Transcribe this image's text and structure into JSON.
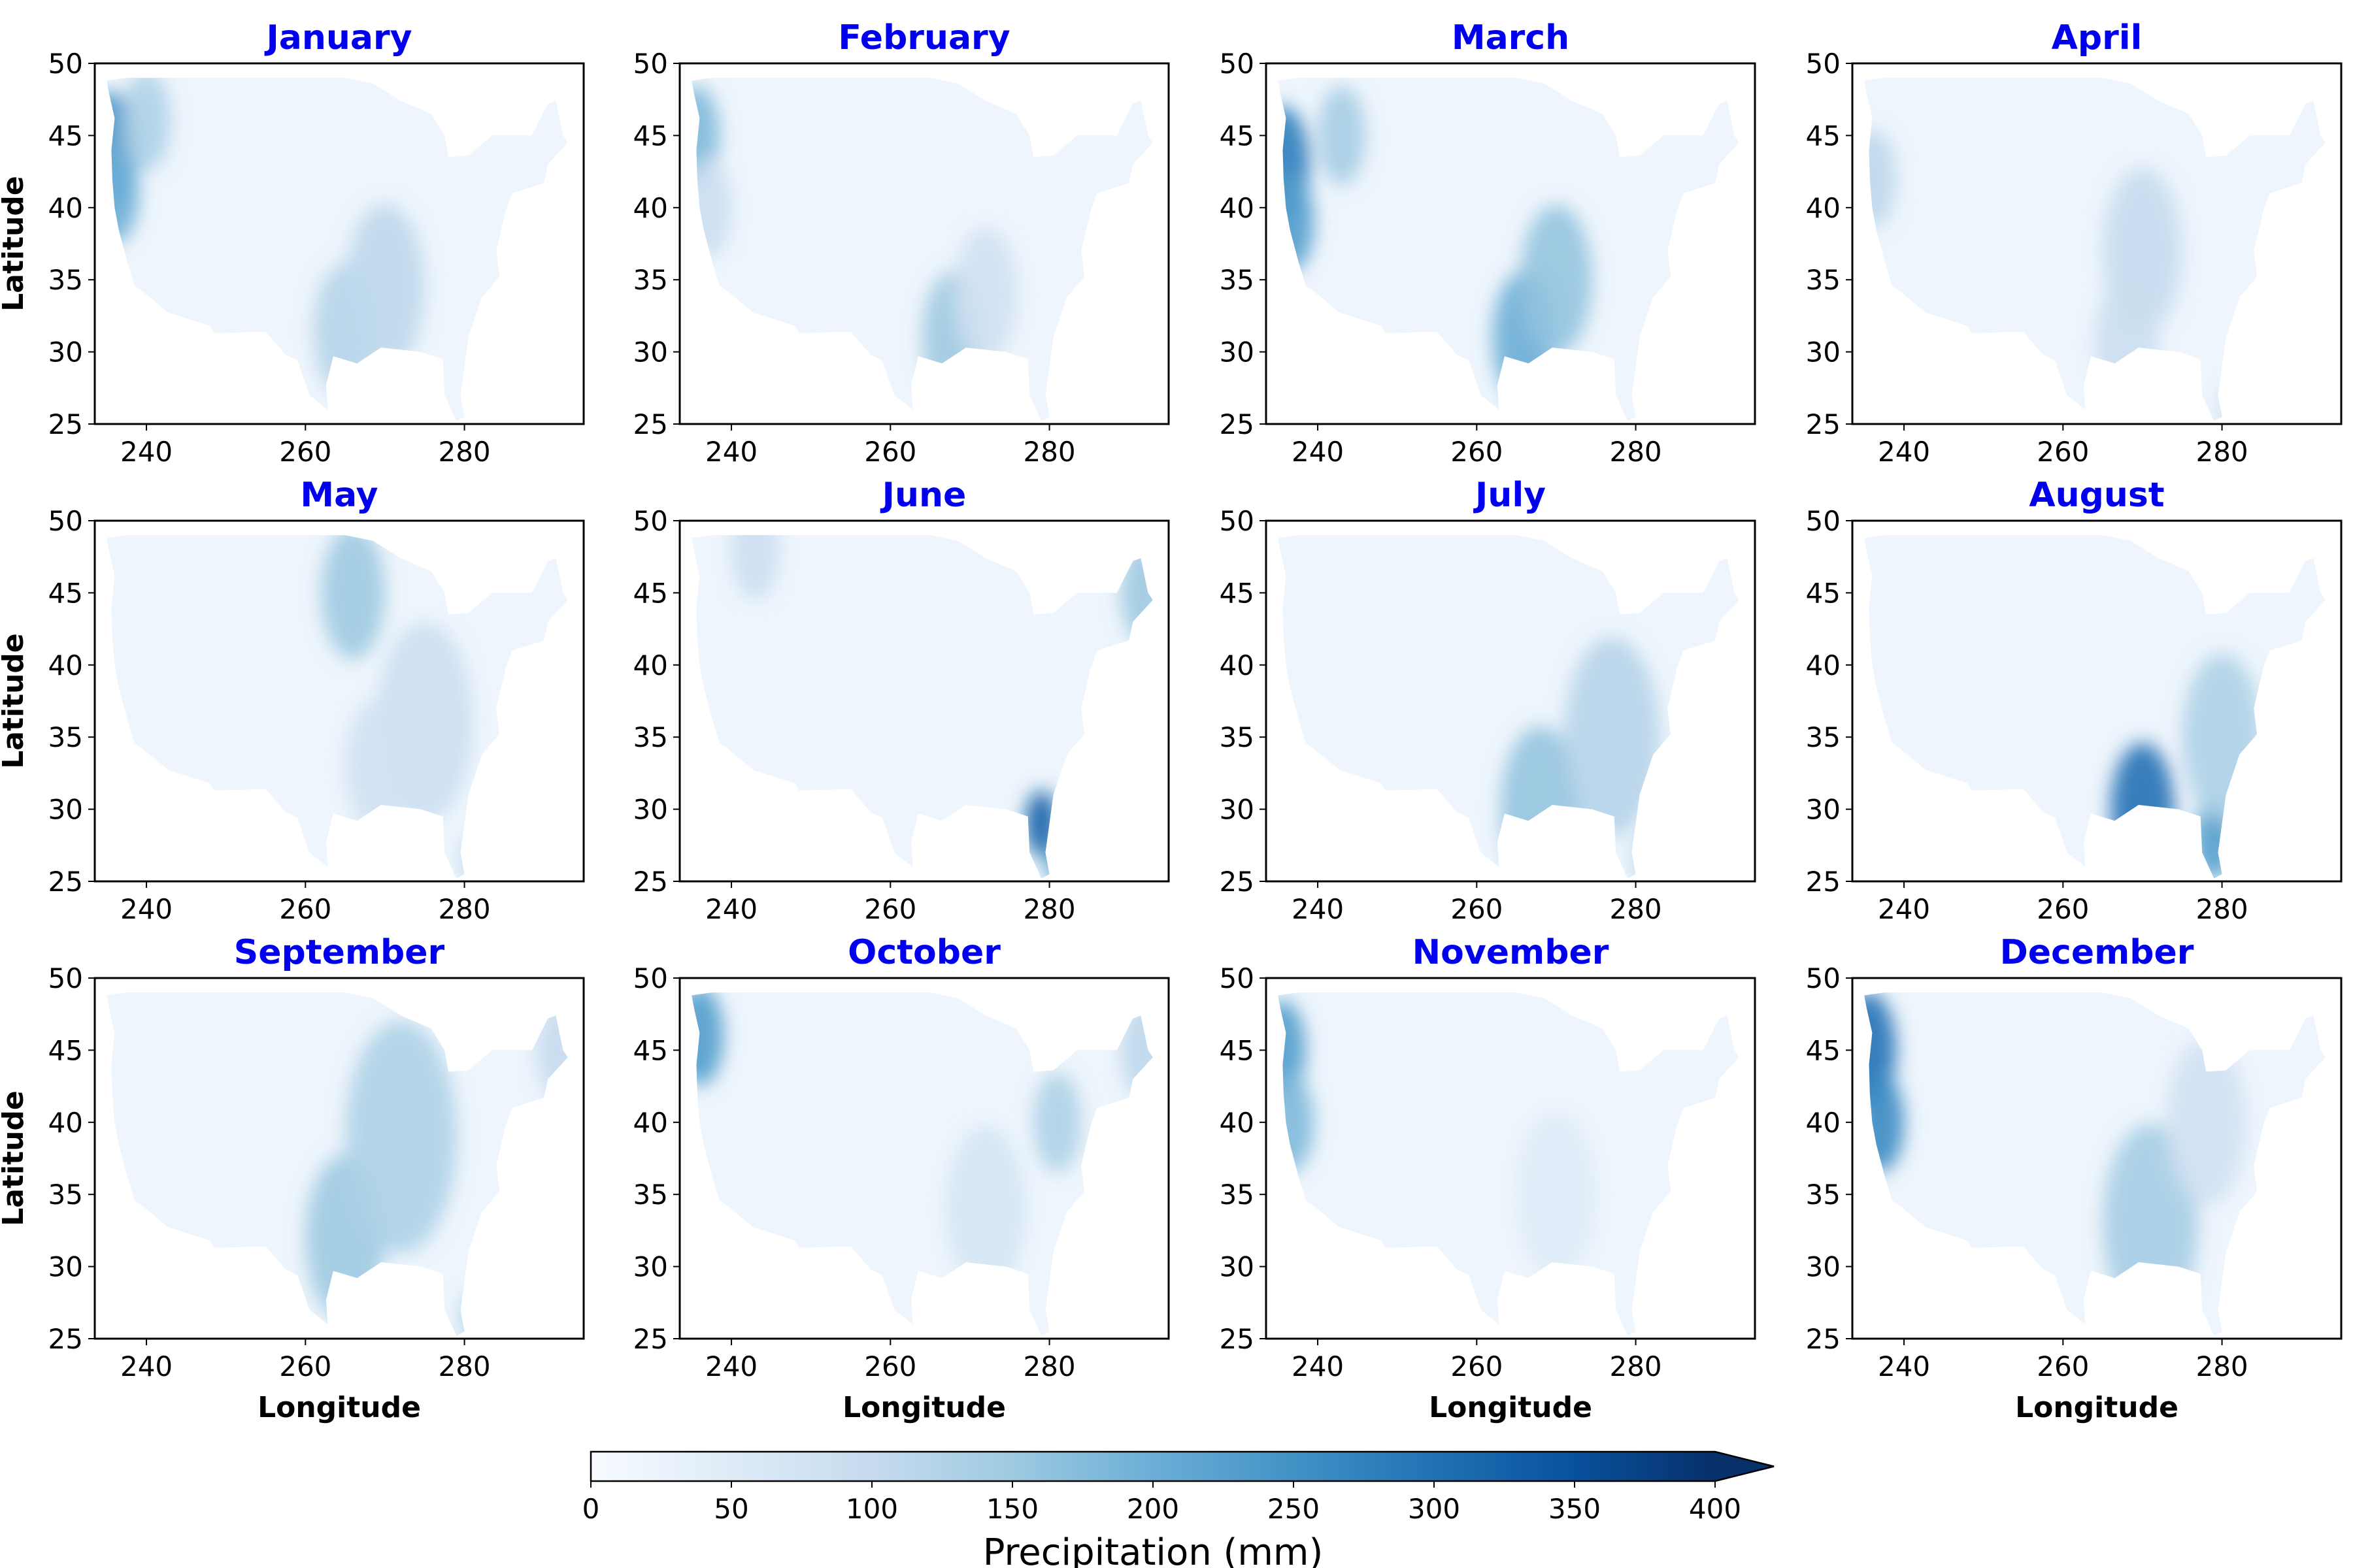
{
  "figure": {
    "colorbar": {
      "label": "Precipitation (mm)",
      "ticks": [
        "0",
        "50",
        "100",
        "150",
        "200",
        "250",
        "300",
        "350",
        "400"
      ],
      "min": 0,
      "max": 400,
      "extend": "max",
      "colormap": [
        "#f7fbff",
        "#deebf7",
        "#c6dbef",
        "#9ecae1",
        "#6baed6",
        "#4292c6",
        "#2171b5",
        "#08519c",
        "#08306b"
      ]
    }
  },
  "chart_data": {
    "type": "heatmap",
    "layout": "3x4 panel grid",
    "x_label": "Longitude",
    "y_label": "Latitude",
    "xlim": [
      233.5,
      295
    ],
    "ylim": [
      25,
      50
    ],
    "x_ticks": [
      "240",
      "260",
      "280"
    ],
    "y_ticks": [
      "25",
      "30",
      "35",
      "40",
      "45",
      "50"
    ],
    "colorbar_label": "Precipitation (mm)",
    "panels": [
      {
        "title": "January",
        "hotspots": [
          [
            235.5,
            44,
            3.5,
            250
          ],
          [
            236,
            41,
            3,
            200
          ],
          [
            240,
            46,
            3,
            130
          ],
          [
            265,
            31.5,
            4,
            120
          ],
          [
            270,
            34.5,
            5,
            110
          ]
        ]
      },
      {
        "title": "February",
        "hotspots": [
          [
            235.5,
            45,
            3,
            180
          ],
          [
            237,
            40,
            3,
            90
          ],
          [
            268,
            31,
            4,
            150
          ],
          [
            272,
            34,
            4,
            80
          ]
        ]
      },
      {
        "title": "March",
        "hotspots": [
          [
            235.5,
            43,
            3.5,
            280
          ],
          [
            236.5,
            39,
            3,
            230
          ],
          [
            243,
            45,
            3,
            140
          ],
          [
            266,
            31,
            4,
            200
          ],
          [
            270,
            35,
            4.5,
            160
          ]
        ]
      },
      {
        "title": "April",
        "hotspots": [
          [
            236,
            42,
            3,
            110
          ],
          [
            270,
            37,
            5,
            100
          ],
          [
            268,
            30.5,
            4,
            90
          ],
          [
            281,
            26,
            1.5,
            80
          ]
        ]
      },
      {
        "title": "May",
        "hotspots": [
          [
            266,
            45,
            4,
            150
          ],
          [
            275,
            36,
            6,
            90
          ],
          [
            269,
            33,
            4,
            80
          ],
          [
            281,
            26.5,
            1.5,
            110
          ]
        ]
      },
      {
        "title": "June",
        "hotspots": [
          [
            279,
            29,
            2,
            330
          ],
          [
            281,
            26.5,
            1.5,
            230
          ],
          [
            292,
            45,
            3,
            150
          ],
          [
            243,
            48,
            3,
            90
          ]
        ]
      },
      {
        "title": "July",
        "hotspots": [
          [
            268,
            30,
            5,
            160
          ],
          [
            277,
            35,
            6,
            120
          ],
          [
            281,
            26.5,
            1.5,
            110
          ]
        ]
      },
      {
        "title": "August",
        "hotspots": [
          [
            270,
            30,
            4,
            300
          ],
          [
            279,
            28,
            2.5,
            230
          ],
          [
            280,
            35,
            5,
            130
          ]
        ]
      },
      {
        "title": "September",
        "hotspots": [
          [
            265,
            32,
            5,
            150
          ],
          [
            272,
            39,
            7,
            130
          ],
          [
            281,
            26.5,
            1.5,
            130
          ],
          [
            292,
            45,
            3,
            100
          ]
        ]
      },
      {
        "title": "October",
        "hotspots": [
          [
            236,
            46,
            3,
            230
          ],
          [
            281,
            40,
            3,
            130
          ],
          [
            292,
            45,
            3,
            110
          ],
          [
            272,
            34,
            5,
            70
          ]
        ]
      },
      {
        "title": "November",
        "hotspots": [
          [
            235.5,
            45,
            3,
            230
          ],
          [
            236.5,
            40,
            3,
            180
          ],
          [
            270,
            35,
            5,
            50
          ]
        ]
      },
      {
        "title": "December",
        "hotspots": [
          [
            235.5,
            45,
            3.5,
            300
          ],
          [
            237,
            40,
            3,
            260
          ],
          [
            271,
            33,
            6,
            140
          ],
          [
            278,
            40,
            5,
            80
          ]
        ]
      }
    ]
  }
}
